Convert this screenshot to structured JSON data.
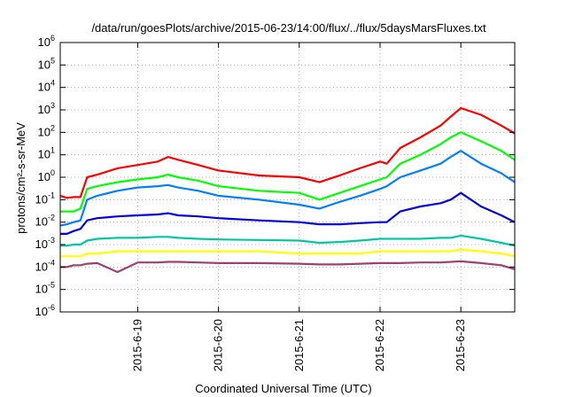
{
  "chart_data": {
    "type": "line",
    "title": "/data/run/goesPlots/archive/2015-06-23/14:00/flux/../flux/5daysMarsFluxes.txt",
    "xlabel": "Coordinated Universal Time (UTC)",
    "ylabel": "protons/cm²-s-sr-MeV",
    "yscale": "log",
    "ylim": [
      1e-06,
      1000000.0
    ],
    "xlim": [
      "2015-06-18T01:00",
      "2015-06-23T16:00"
    ],
    "grid": true,
    "y_ticks": [
      {
        "v": 1e-06,
        "base": "10",
        "exp": "-6"
      },
      {
        "v": 1e-05,
        "base": "10",
        "exp": "-5"
      },
      {
        "v": 0.0001,
        "base": "10",
        "exp": "-4"
      },
      {
        "v": 0.001,
        "base": "10",
        "exp": "-3"
      },
      {
        "v": 0.01,
        "base": "10",
        "exp": "-2"
      },
      {
        "v": 0.1,
        "base": "10",
        "exp": "-1"
      },
      {
        "v": 1,
        "base": "10",
        "exp": "0"
      },
      {
        "v": 10,
        "base": "10",
        "exp": "1"
      },
      {
        "v": 100,
        "base": "10",
        "exp": "2"
      },
      {
        "v": 1000,
        "base": "10",
        "exp": "3"
      },
      {
        "v": 10000,
        "base": "10",
        "exp": "4"
      },
      {
        "v": 100000,
        "base": "10",
        "exp": "5"
      },
      {
        "v": 1000000,
        "base": "10",
        "exp": "6"
      }
    ],
    "x_ticks": [
      {
        "x": "2015-06-19T00:00",
        "label": "2015-6-19"
      },
      {
        "x": "2015-06-20T00:00",
        "label": "2015-6-20"
      },
      {
        "x": "2015-06-21T00:00",
        "label": "2015-6-21"
      },
      {
        "x": "2015-06-22T00:00",
        "label": "2015-6-22"
      },
      {
        "x": "2015-06-23T00:00",
        "label": "2015-6-23"
      }
    ],
    "series": [
      {
        "color": "#ff0000",
        "x": [
          "2015-06-18T01:00",
          "2015-06-18T03:00",
          "2015-06-18T05:00",
          "2015-06-18T07:00",
          "2015-06-18T09:00",
          "2015-06-18T12:00",
          "2015-06-18T18:00",
          "2015-06-19T00:00",
          "2015-06-19T06:00",
          "2015-06-19T09:00",
          "2015-06-19T12:00",
          "2015-06-19T18:00",
          "2015-06-20T00:00",
          "2015-06-20T12:00",
          "2015-06-21T00:00",
          "2015-06-21T06:00",
          "2015-06-21T12:00",
          "2015-06-21T18:00",
          "2015-06-22T00:00",
          "2015-06-22T02:00",
          "2015-06-22T06:00",
          "2015-06-22T12:00",
          "2015-06-22T18:00",
          "2015-06-22T21:00",
          "2015-06-23T00:00",
          "2015-06-23T06:00",
          "2015-06-23T12:00",
          "2015-06-23T16:00"
        ],
        "values": [
          0.15,
          0.12,
          0.13,
          0.13,
          1.0,
          1.3,
          2.5,
          3.5,
          5.0,
          8.0,
          6.0,
          3.5,
          2.0,
          1.2,
          1.0,
          0.6,
          1.2,
          2.5,
          5.0,
          4.0,
          20,
          60,
          200,
          500,
          1200,
          600,
          200,
          90
        ]
      },
      {
        "color": "#00ff00",
        "x": [
          "2015-06-18T01:00",
          "2015-06-18T03:00",
          "2015-06-18T05:00",
          "2015-06-18T07:00",
          "2015-06-18T09:00",
          "2015-06-18T12:00",
          "2015-06-18T18:00",
          "2015-06-19T00:00",
          "2015-06-19T06:00",
          "2015-06-19T09:00",
          "2015-06-19T12:00",
          "2015-06-19T18:00",
          "2015-06-20T00:00",
          "2015-06-20T12:00",
          "2015-06-21T00:00",
          "2015-06-21T06:00",
          "2015-06-21T12:00",
          "2015-06-21T18:00",
          "2015-06-22T00:00",
          "2015-06-22T02:00",
          "2015-06-22T06:00",
          "2015-06-22T12:00",
          "2015-06-22T18:00",
          "2015-06-22T21:00",
          "2015-06-23T00:00",
          "2015-06-23T06:00",
          "2015-06-23T12:00",
          "2015-06-23T16:00"
        ],
        "values": [
          0.03,
          0.03,
          0.03,
          0.04,
          0.3,
          0.4,
          0.6,
          0.8,
          1.0,
          1.3,
          1.0,
          0.7,
          0.4,
          0.25,
          0.2,
          0.1,
          0.2,
          0.4,
          0.8,
          1.0,
          4.0,
          10,
          30,
          60,
          100,
          40,
          15,
          6
        ]
      },
      {
        "color": "#0080ff",
        "x": [
          "2015-06-18T01:00",
          "2015-06-18T03:00",
          "2015-06-18T05:00",
          "2015-06-18T07:00",
          "2015-06-18T09:00",
          "2015-06-18T12:00",
          "2015-06-18T18:00",
          "2015-06-19T00:00",
          "2015-06-19T06:00",
          "2015-06-19T09:00",
          "2015-06-19T12:00",
          "2015-06-19T18:00",
          "2015-06-20T00:00",
          "2015-06-20T12:00",
          "2015-06-21T00:00",
          "2015-06-21T06:00",
          "2015-06-21T12:00",
          "2015-06-21T18:00",
          "2015-06-22T00:00",
          "2015-06-22T02:00",
          "2015-06-22T06:00",
          "2015-06-22T12:00",
          "2015-06-22T18:00",
          "2015-06-22T21:00",
          "2015-06-23T00:00",
          "2015-06-23T06:00",
          "2015-06-23T12:00",
          "2015-06-23T16:00"
        ],
        "values": [
          0.007,
          0.008,
          0.01,
          0.012,
          0.1,
          0.15,
          0.25,
          0.35,
          0.4,
          0.45,
          0.35,
          0.25,
          0.15,
          0.1,
          0.06,
          0.04,
          0.08,
          0.15,
          0.3,
          0.4,
          1.0,
          2.0,
          4.0,
          8.0,
          15,
          4.0,
          1.5,
          0.6
        ]
      },
      {
        "color": "#0000e0",
        "x": [
          "2015-06-18T01:00",
          "2015-06-18T03:00",
          "2015-06-18T05:00",
          "2015-06-18T07:00",
          "2015-06-18T09:00",
          "2015-06-18T12:00",
          "2015-06-18T18:00",
          "2015-06-19T00:00",
          "2015-06-19T06:00",
          "2015-06-19T09:00",
          "2015-06-19T12:00",
          "2015-06-19T18:00",
          "2015-06-20T00:00",
          "2015-06-20T12:00",
          "2015-06-21T00:00",
          "2015-06-21T06:00",
          "2015-06-21T12:00",
          "2015-06-21T18:00",
          "2015-06-22T00:00",
          "2015-06-22T02:00",
          "2015-06-22T06:00",
          "2015-06-22T12:00",
          "2015-06-22T18:00",
          "2015-06-22T21:00",
          "2015-06-23T00:00",
          "2015-06-23T06:00",
          "2015-06-23T12:00",
          "2015-06-23T16:00"
        ],
        "values": [
          0.003,
          0.003,
          0.004,
          0.005,
          0.012,
          0.015,
          0.018,
          0.02,
          0.022,
          0.025,
          0.02,
          0.018,
          0.015,
          0.012,
          0.01,
          0.008,
          0.008,
          0.009,
          0.01,
          0.01,
          0.03,
          0.05,
          0.07,
          0.1,
          0.2,
          0.05,
          0.02,
          0.01
        ]
      },
      {
        "color": "#00c8a0",
        "x": [
          "2015-06-18T01:00",
          "2015-06-18T03:00",
          "2015-06-18T05:00",
          "2015-06-18T07:00",
          "2015-06-18T09:00",
          "2015-06-18T12:00",
          "2015-06-18T18:00",
          "2015-06-19T00:00",
          "2015-06-19T06:00",
          "2015-06-19T09:00",
          "2015-06-19T12:00",
          "2015-06-19T18:00",
          "2015-06-20T00:00",
          "2015-06-20T12:00",
          "2015-06-21T00:00",
          "2015-06-21T06:00",
          "2015-06-21T12:00",
          "2015-06-21T18:00",
          "2015-06-22T00:00",
          "2015-06-22T02:00",
          "2015-06-22T06:00",
          "2015-06-22T12:00",
          "2015-06-22T18:00",
          "2015-06-22T21:00",
          "2015-06-23T00:00",
          "2015-06-23T06:00",
          "2015-06-23T12:00",
          "2015-06-23T16:00"
        ],
        "values": [
          0.0009,
          0.0009,
          0.001,
          0.001,
          0.0015,
          0.0018,
          0.002,
          0.002,
          0.0022,
          0.0022,
          0.002,
          0.0018,
          0.0017,
          0.0016,
          0.0015,
          0.0012,
          0.0013,
          0.0015,
          0.0018,
          0.0018,
          0.0018,
          0.0018,
          0.002,
          0.002,
          0.0025,
          0.0018,
          0.0012,
          0.0009
        ]
      },
      {
        "color": "#ffff00",
        "x": [
          "2015-06-18T01:00",
          "2015-06-18T03:00",
          "2015-06-18T05:00",
          "2015-06-18T07:00",
          "2015-06-18T09:00",
          "2015-06-18T12:00",
          "2015-06-18T18:00",
          "2015-06-19T00:00",
          "2015-06-19T06:00",
          "2015-06-19T09:00",
          "2015-06-19T12:00",
          "2015-06-19T18:00",
          "2015-06-20T00:00",
          "2015-06-20T12:00",
          "2015-06-21T00:00",
          "2015-06-21T06:00",
          "2015-06-21T12:00",
          "2015-06-21T18:00",
          "2015-06-22T00:00",
          "2015-06-22T02:00",
          "2015-06-22T06:00",
          "2015-06-22T12:00",
          "2015-06-22T18:00",
          "2015-06-22T21:00",
          "2015-06-23T00:00",
          "2015-06-23T06:00",
          "2015-06-23T12:00",
          "2015-06-23T16:00"
        ],
        "values": [
          0.0003,
          0.0003,
          0.0003,
          0.0003,
          0.0004,
          0.0004,
          0.0005,
          0.0005,
          0.0005,
          0.0005,
          0.0005,
          0.0005,
          0.0005,
          0.0005,
          0.0004,
          0.0004,
          0.0004,
          0.0004,
          0.0005,
          0.0005,
          0.0005,
          0.0005,
          0.0005,
          0.0005,
          0.0006,
          0.0005,
          0.0004,
          0.0003
        ]
      },
      {
        "color": "#a04070",
        "x": [
          "2015-06-18T01:00",
          "2015-06-18T03:00",
          "2015-06-18T05:00",
          "2015-06-18T07:00",
          "2015-06-18T09:00",
          "2015-06-18T12:00",
          "2015-06-18T18:00",
          "2015-06-19T00:00",
          "2015-06-19T06:00",
          "2015-06-19T09:00",
          "2015-06-19T12:00",
          "2015-06-19T18:00",
          "2015-06-20T00:00",
          "2015-06-20T12:00",
          "2015-06-21T00:00",
          "2015-06-21T06:00",
          "2015-06-21T12:00",
          "2015-06-21T18:00",
          "2015-06-22T00:00",
          "2015-06-22T02:00",
          "2015-06-22T06:00",
          "2015-06-22T12:00",
          "2015-06-22T18:00",
          "2015-06-22T21:00",
          "2015-06-23T00:00",
          "2015-06-23T06:00",
          "2015-06-23T12:00",
          "2015-06-23T16:00"
        ],
        "values": [
          0.0001,
          0.0001,
          0.00012,
          0.00012,
          0.00014,
          0.00015,
          6e-05,
          0.00016,
          0.00016,
          0.00017,
          0.00017,
          0.00016,
          0.00015,
          0.00015,
          0.00014,
          0.00013,
          0.00013,
          0.00014,
          0.00015,
          0.00015,
          0.00015,
          0.00016,
          0.00016,
          0.00017,
          0.00018,
          0.00015,
          0.00012,
          8e-05
        ]
      }
    ]
  }
}
